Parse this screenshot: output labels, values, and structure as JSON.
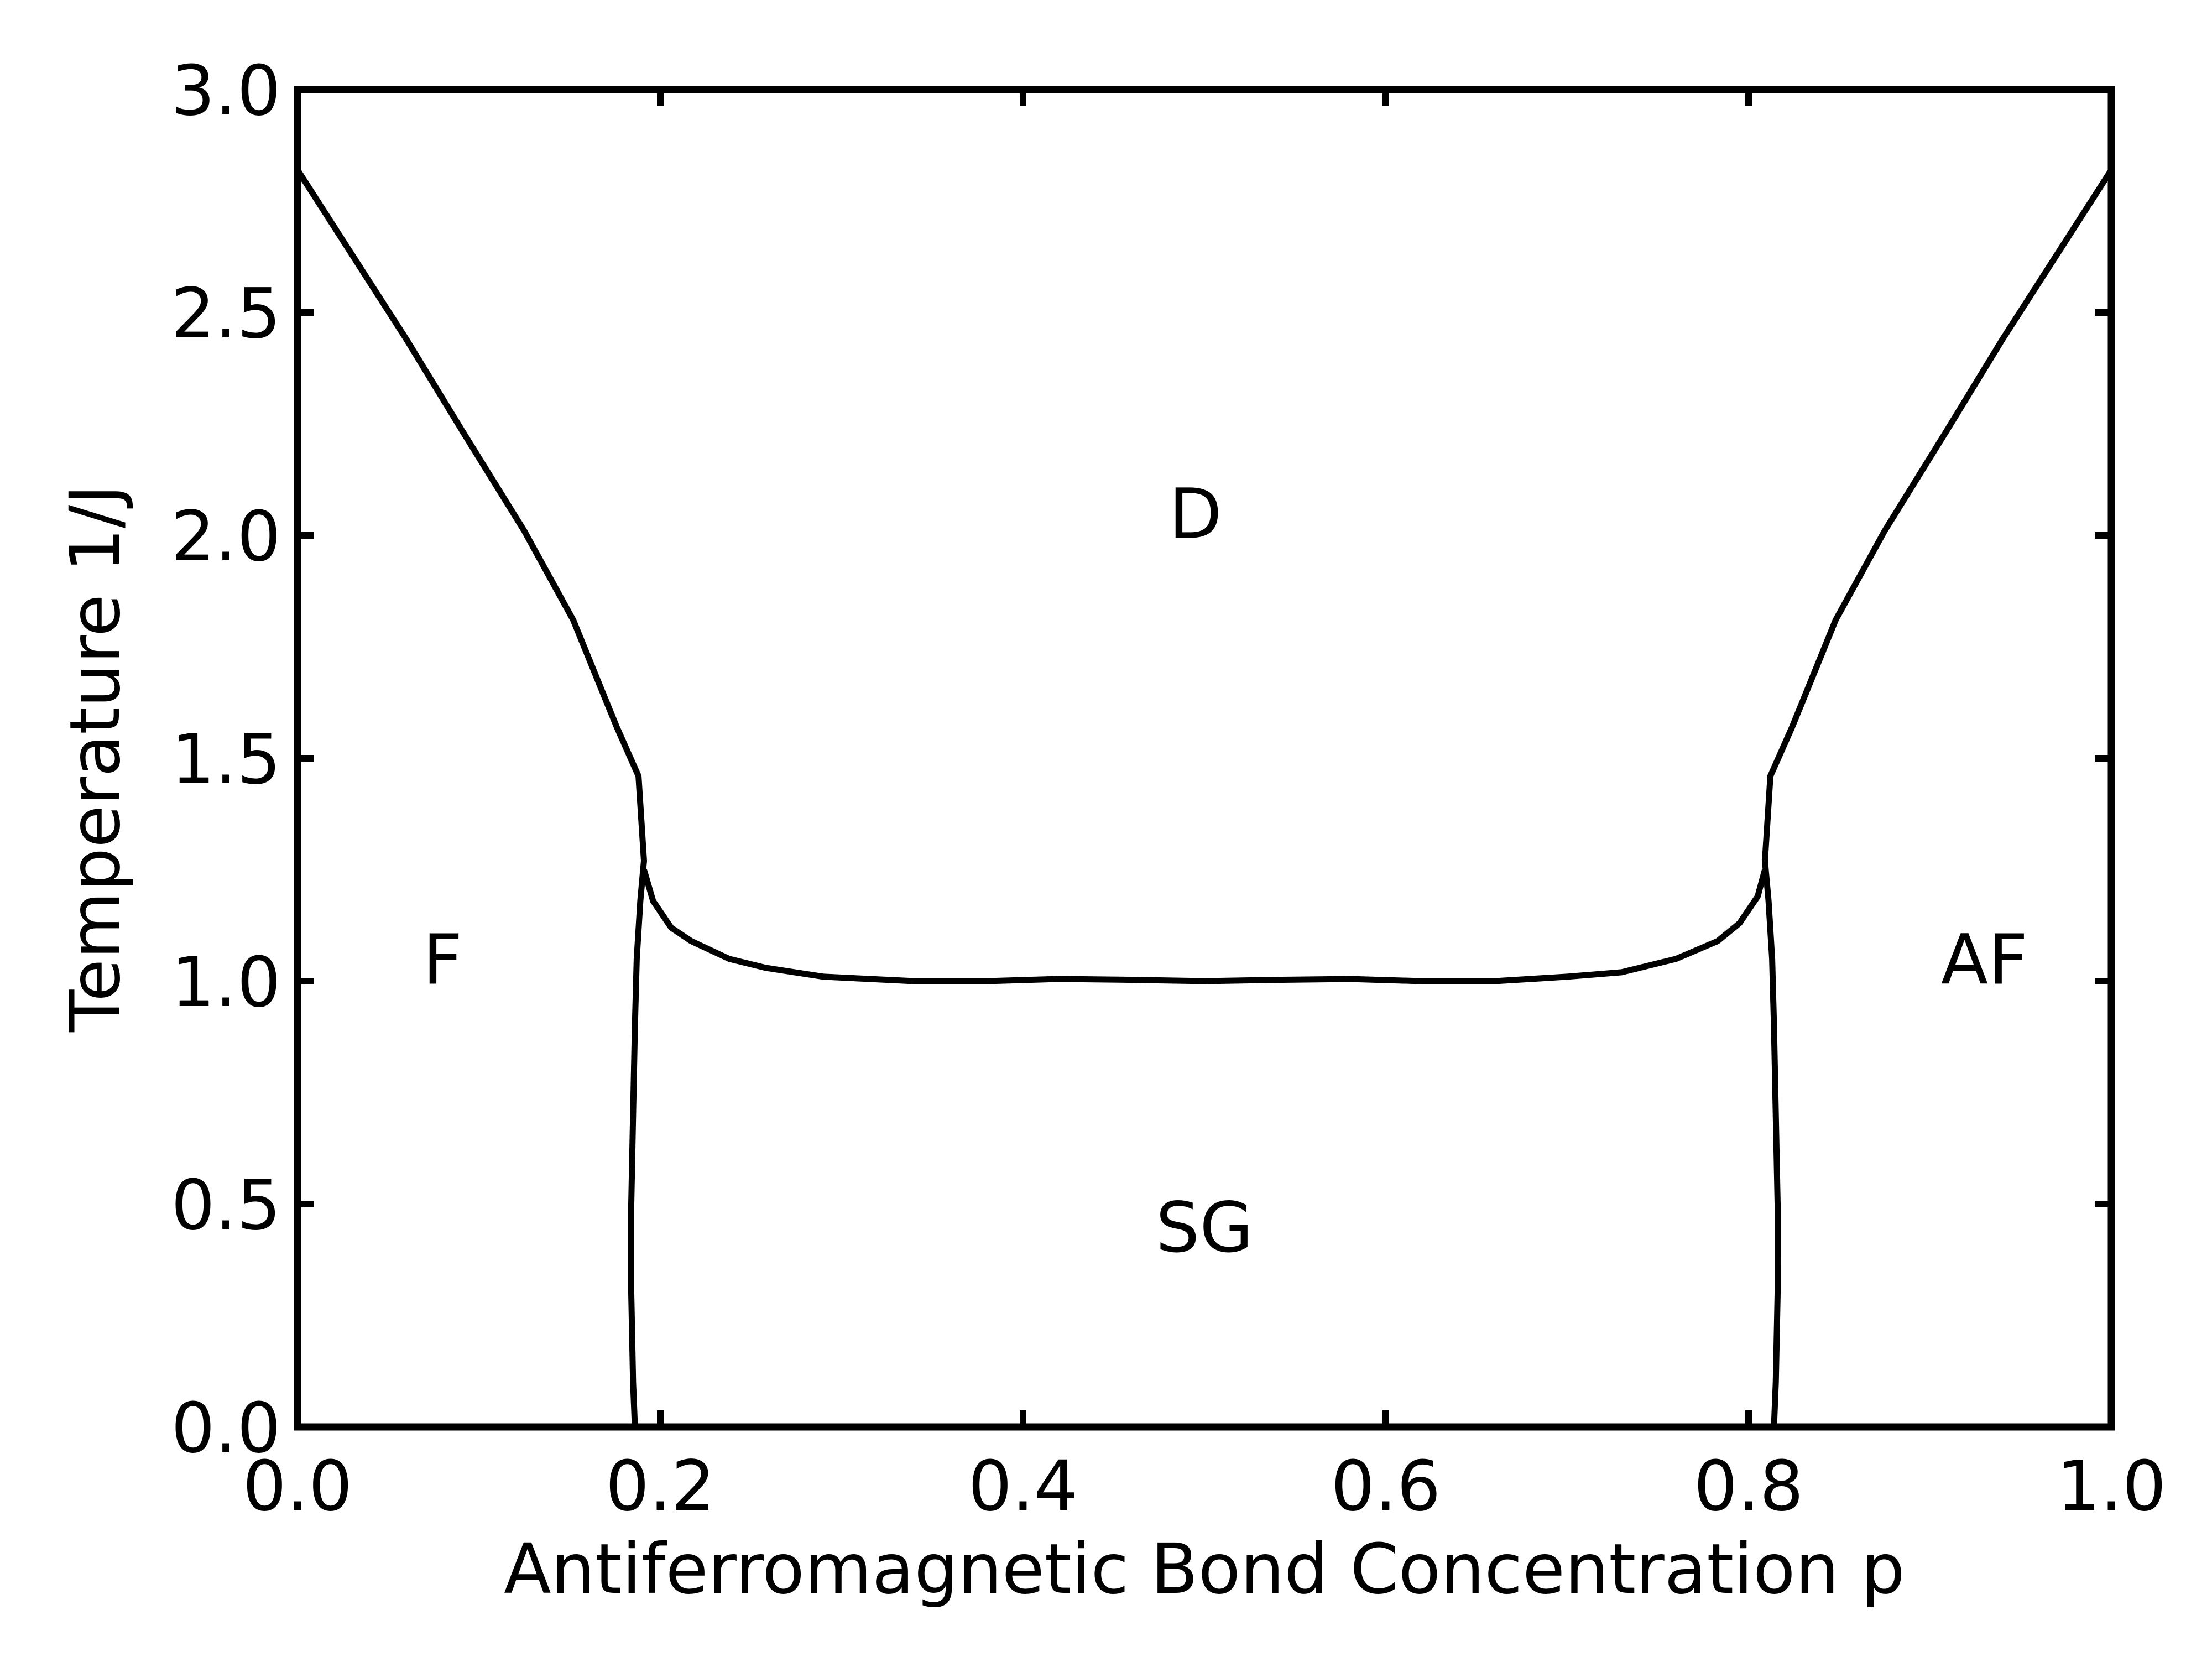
{
  "chart_data": {
    "type": "line",
    "title": "",
    "xlabel": "Antiferromagnetic Bond Concentration p",
    "ylabel": "Temperature 1/J",
    "xlim": [
      0.0,
      1.0
    ],
    "ylim": [
      0.0,
      3.0
    ],
    "x_ticks": [
      0.0,
      0.2,
      0.4,
      0.6,
      0.8,
      1.0
    ],
    "x_tick_labels": [
      "0.0",
      "0.2",
      "0.4",
      "0.6",
      "0.8",
      "1.0"
    ],
    "y_ticks": [
      0.0,
      0.5,
      1.0,
      1.5,
      2.0,
      2.5,
      3.0
    ],
    "y_tick_labels": [
      "0.0",
      "0.5",
      "1.0",
      "1.5",
      "2.0",
      "2.5",
      "3.0"
    ],
    "grid": false,
    "legend": "none",
    "line_color": "#000000",
    "series": [
      {
        "x": [
          0.0,
          0.06,
          0.09,
          0.125,
          0.152,
          0.16,
          0.168,
          0.176,
          0.188,
          0.191
        ],
        "y": [
          2.82,
          2.44,
          2.24,
          2.01,
          1.81,
          1.73,
          1.65,
          1.57,
          1.46,
          1.27
        ]
      },
      {
        "x": [
          0.191,
          0.196,
          0.206,
          0.217,
          0.238,
          0.258,
          0.29,
          0.34,
          0.38,
          0.42,
          0.46,
          0.5,
          0.54,
          0.58,
          0.62,
          0.66,
          0.7,
          0.73,
          0.76,
          0.783,
          0.795,
          0.805,
          0.809
        ],
        "y": [
          1.25,
          1.18,
          1.12,
          1.09,
          1.05,
          1.03,
          1.01,
          1.0,
          1.0,
          1.005,
          1.003,
          1.0,
          1.003,
          1.005,
          1.0,
          1.0,
          1.01,
          1.02,
          1.05,
          1.09,
          1.13,
          1.19,
          1.25
        ]
      },
      {
        "x": [
          0.809,
          0.812,
          0.824,
          0.832,
          0.84,
          0.848,
          0.875,
          0.91,
          0.94,
          1.0
        ],
        "y": [
          1.27,
          1.46,
          1.57,
          1.65,
          1.73,
          1.81,
          2.01,
          2.24,
          2.44,
          2.82
        ]
      },
      {
        "x": [
          0.186,
          0.185,
          0.184,
          0.184,
          0.185,
          0.186,
          0.187,
          0.189,
          0.191
        ],
        "y": [
          0.0,
          0.1,
          0.3,
          0.5,
          0.7,
          0.9,
          1.05,
          1.18,
          1.27
        ]
      },
      {
        "x": [
          0.814,
          0.815,
          0.816,
          0.816,
          0.815,
          0.814,
          0.813,
          0.811,
          0.809
        ],
        "y": [
          0.0,
          0.1,
          0.3,
          0.5,
          0.7,
          0.9,
          1.05,
          1.18,
          1.27
        ]
      }
    ],
    "region_labels": [
      {
        "text": "D",
        "x": 0.495,
        "y": 2.05
      },
      {
        "text": "F",
        "x": 0.08,
        "y": 1.05
      },
      {
        "text": "AF",
        "x": 0.93,
        "y": 1.05
      },
      {
        "text": "SG",
        "x": 0.5,
        "y": 0.45
      }
    ]
  }
}
